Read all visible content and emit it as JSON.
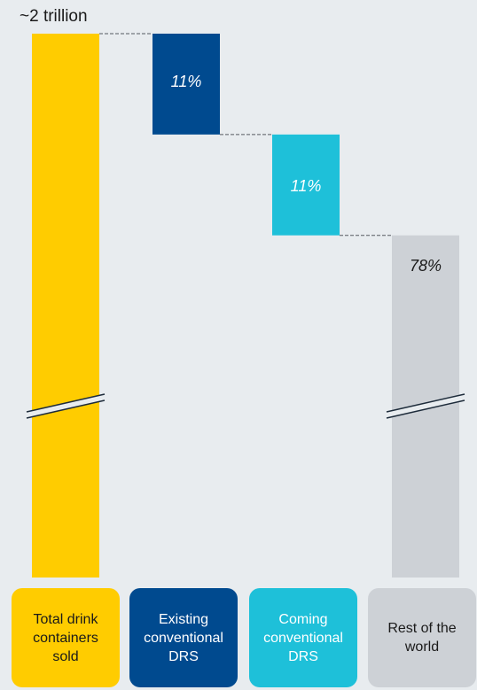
{
  "total_label": "~2 trillion",
  "chart_data": {
    "type": "bar",
    "subtype": "waterfall",
    "categories": [
      "Total drink containers sold",
      "Existing conventional DRS",
      "Coming conventional DRS",
      "Rest of the world"
    ],
    "values": [
      100,
      11,
      11,
      78
    ],
    "data_labels": [
      "",
      "11%",
      "11%",
      "78%"
    ],
    "total_annotation": "~2 trillion",
    "axis_break": true,
    "colors": [
      "#ffcc00",
      "#004a8f",
      "#1ec0d9",
      "#cdd1d6"
    ],
    "label_colors": [
      "#1a1a1a",
      "#ffffff",
      "#ffffff",
      "#1a1a1a"
    ],
    "value_label_colors": [
      "#1a1a1a",
      "#ffffff",
      "#ffffff",
      "#1a1a1a"
    ],
    "grid": false,
    "legend": "none"
  },
  "categories_display": [
    {
      "lines": [
        "Total drink",
        "containers",
        "sold"
      ]
    },
    {
      "lines": [
        "Existing",
        "conventional",
        "DRS"
      ]
    },
    {
      "lines": [
        "Coming",
        "conventional",
        "DRS"
      ]
    },
    {
      "lines": [
        "Rest of the",
        "world"
      ]
    }
  ]
}
